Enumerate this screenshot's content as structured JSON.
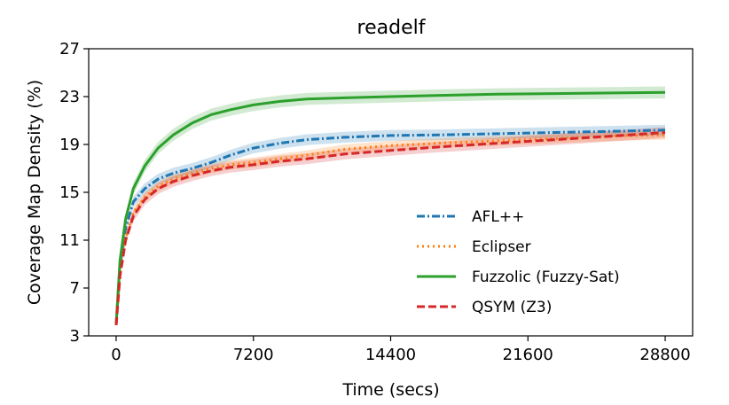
{
  "chart_data": {
    "type": "line",
    "title": "readelf",
    "xlabel": "Time (secs)",
    "ylabel": "Coverage Map Density (%)",
    "xlim": [
      -1440,
      30240
    ],
    "ylim": [
      3,
      27
    ],
    "xticks": [
      0,
      7200,
      14400,
      21600,
      28800
    ],
    "yticks": [
      3,
      7,
      11,
      15,
      19,
      23,
      27
    ],
    "xtick_labels": [
      "0",
      "7200",
      "14400",
      "21600",
      "28800"
    ],
    "ytick_labels": [
      "3",
      "7",
      "11",
      "15",
      "19",
      "23",
      "27"
    ],
    "grid": false,
    "legend_position": "lower-right",
    "series": [
      {
        "name": "AFL++",
        "color": "#1f77b4",
        "dash": "dashdot",
        "x": [
          0,
          200,
          500,
          900,
          1500,
          2200,
          3000,
          4000,
          5000,
          6000,
          7200,
          8600,
          10000,
          12000,
          14400,
          17000,
          20000,
          23000,
          26000,
          28800
        ],
        "y": [
          4.0,
          9.0,
          12.0,
          14.2,
          15.3,
          16.1,
          16.6,
          17.0,
          17.5,
          18.1,
          18.7,
          19.1,
          19.4,
          19.6,
          19.75,
          19.8,
          19.9,
          20.0,
          20.1,
          20.2
        ],
        "band": 0.45
      },
      {
        "name": "Eclipser",
        "color": "#ff7f0e",
        "dash": "dotted",
        "x": [
          0,
          200,
          500,
          900,
          1500,
          2200,
          3000,
          4000,
          5000,
          6000,
          7200,
          8600,
          10000,
          12000,
          14400,
          17000,
          20000,
          23000,
          26000,
          28800
        ],
        "y": [
          3.9,
          8.2,
          11.2,
          13.3,
          14.6,
          15.5,
          16.1,
          16.6,
          17.0,
          17.3,
          17.5,
          17.8,
          18.1,
          18.6,
          18.9,
          19.1,
          19.3,
          19.5,
          19.7,
          19.8
        ],
        "band": 0.4
      },
      {
        "name": "Fuzzolic (Fuzzy-Sat)",
        "color": "#2ca02c",
        "dash": "solid",
        "x": [
          0,
          200,
          500,
          900,
          1500,
          2200,
          3000,
          4000,
          5000,
          6000,
          7200,
          8600,
          10000,
          12000,
          14400,
          17000,
          20000,
          23000,
          26000,
          28800
        ],
        "y": [
          4.0,
          9.3,
          12.8,
          15.3,
          17.2,
          18.7,
          19.8,
          20.8,
          21.5,
          21.9,
          22.3,
          22.6,
          22.8,
          22.9,
          23.0,
          23.1,
          23.2,
          23.25,
          23.3,
          23.35
        ],
        "band": 0.5
      },
      {
        "name": "QSYM (Z3)",
        "color": "#d62728",
        "dash": "dashed",
        "x": [
          0,
          200,
          500,
          900,
          1500,
          2200,
          3000,
          4000,
          5000,
          6000,
          7200,
          8600,
          10000,
          12000,
          14400,
          17000,
          20000,
          23000,
          26000,
          28800
        ],
        "y": [
          3.9,
          8.0,
          11.0,
          13.0,
          14.4,
          15.3,
          15.9,
          16.4,
          16.8,
          17.1,
          17.3,
          17.6,
          17.8,
          18.2,
          18.5,
          18.8,
          19.1,
          19.4,
          19.7,
          20.0
        ],
        "band": 0.45
      }
    ]
  }
}
